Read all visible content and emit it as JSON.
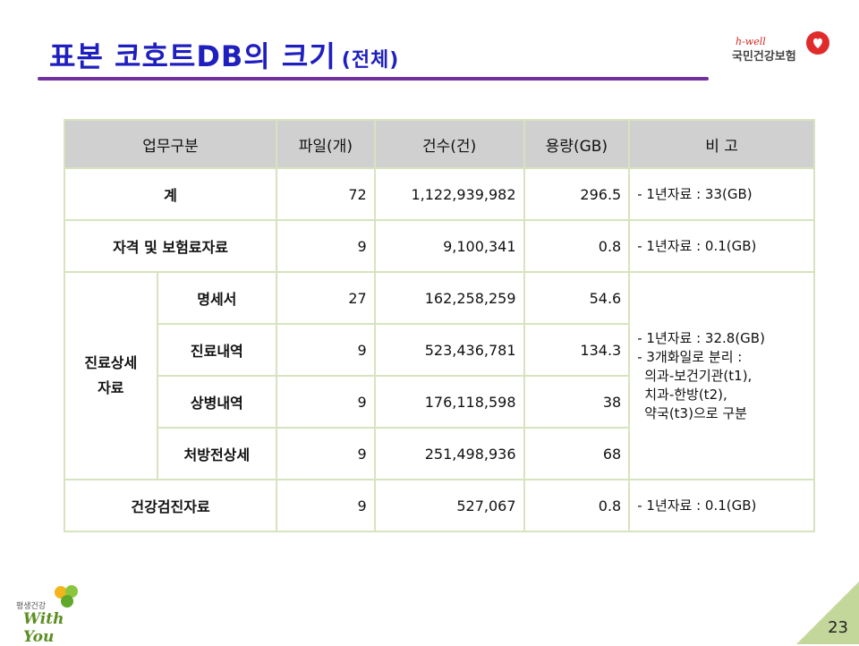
{
  "title": {
    "main": "표본 코호트DB의 크기",
    "sub": "(전체)"
  },
  "logo": {
    "tag": "h-well",
    "name": "국민건강보험"
  },
  "table": {
    "headers": [
      "업무구분",
      "파일(개)",
      "건수(건)",
      "용량(GB)",
      "비 고"
    ],
    "rows": {
      "total": {
        "label": "계",
        "files": "72",
        "count": "1,122,939,982",
        "size": "296.5",
        "note": "- 1년자료 : 33(GB)"
      },
      "qualification": {
        "label": "자격 및 보험료자료",
        "files": "9",
        "count": "9,100,341",
        "size": "0.8",
        "note": "- 1년자료 : 0.1(GB)"
      },
      "treatment": {
        "group_label_1": "진료상세",
        "group_label_2": "자료",
        "subrows": [
          {
            "label": "명세서",
            "files": "27",
            "count": "162,258,259",
            "size": "54.6"
          },
          {
            "label": "진료내역",
            "files": "9",
            "count": "523,436,781",
            "size": "134.3"
          },
          {
            "label": "상병내역",
            "files": "9",
            "count": "176,118,598",
            "size": "38"
          },
          {
            "label": "처방전상세",
            "files": "9",
            "count": "251,498,936",
            "size": "68"
          }
        ],
        "note_lines": [
          "- 1년자료 : 32.8(GB)",
          "- 3개화일로 분리 :",
          "  의과-보건기관(t1),",
          "  치과-한방(t2),",
          "  약국(t3)으로 구분"
        ]
      },
      "checkup": {
        "label": "건강검진자료",
        "files": "9",
        "count": "527,067",
        "size": "0.8",
        "note": "- 1년자료 : 0.1(GB)"
      }
    }
  },
  "footer": {
    "logo_kr": "평생건강",
    "logo_en": "With You",
    "page": "23"
  },
  "colors": {
    "title": "#1f1fbf",
    "rule": "#7030a0",
    "header_bg": "#d0d0d0",
    "border": "#d7e3bf",
    "corner": "#c4d79b"
  }
}
